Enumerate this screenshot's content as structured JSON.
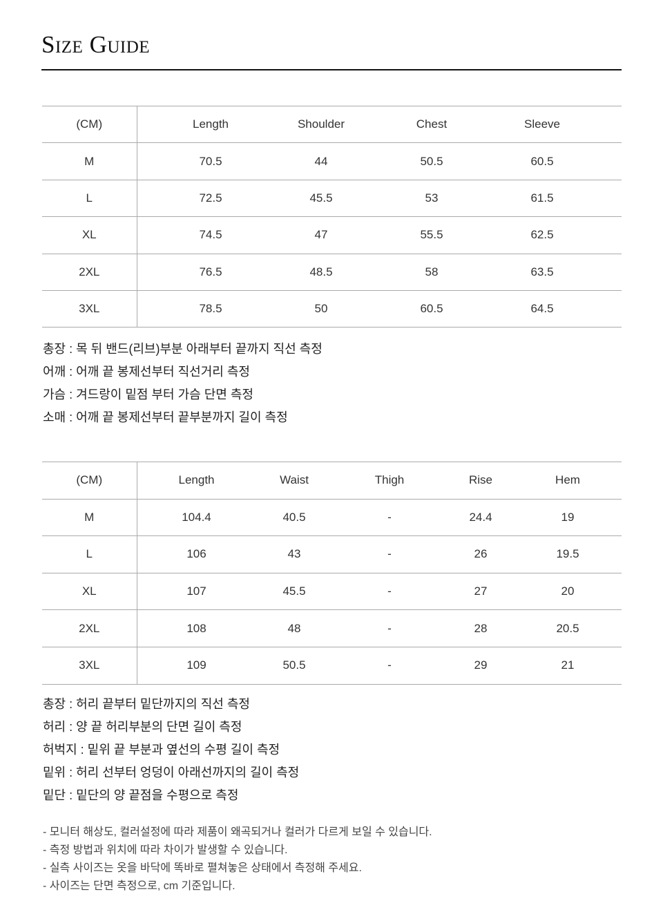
{
  "title": "Size Guide",
  "top_table": {
    "headers": [
      "(CM)",
      "Length",
      "Shoulder",
      "Chest",
      "Sleeve"
    ],
    "rows": [
      [
        "M",
        "70.5",
        "44",
        "50.5",
        "60.5"
      ],
      [
        "L",
        "72.5",
        "45.5",
        "53",
        "61.5"
      ],
      [
        "XL",
        "74.5",
        "47",
        "55.5",
        "62.5"
      ],
      [
        "2XL",
        "76.5",
        "48.5",
        "58",
        "63.5"
      ],
      [
        "3XL",
        "78.5",
        "50",
        "60.5",
        "64.5"
      ]
    ]
  },
  "top_notes": [
    "총장 : 목 뒤 밴드(리브)부분 아래부터 끝까지 직선 측정",
    "어깨 : 어깨 끝 봉제선부터 직선거리 측정",
    "가슴 : 겨드랑이 밑점 부터 가슴 단면 측정",
    "소매 : 어깨 끝 봉제선부터 끝부분까지 길이 측정"
  ],
  "bottom_table": {
    "headers": [
      "(CM)",
      "Length",
      "Waist",
      "Thigh",
      "Rise",
      "Hem"
    ],
    "rows": [
      [
        "M",
        "104.4",
        "40.5",
        "-",
        "24.4",
        "19"
      ],
      [
        "L",
        "106",
        "43",
        "-",
        "26",
        "19.5"
      ],
      [
        "XL",
        "107",
        "45.5",
        "-",
        "27",
        "20"
      ],
      [
        "2XL",
        "108",
        "48",
        "-",
        "28",
        "20.5"
      ],
      [
        "3XL",
        "109",
        "50.5",
        "-",
        "29",
        "21"
      ]
    ]
  },
  "bottom_notes": [
    "총장 : 허리 끝부터 밑단까지의 직선 측정",
    "허리 : 양 끝 허리부분의 단면 길이 측정",
    "허벅지 : 밑위 끝 부분과 옆선의 수평 길이 측정",
    "밑위 : 허리 선부터 엉덩이 아래선까지의 길이 측정",
    "밑단 : 밑단의 양 끝점을 수평으로 측정"
  ],
  "disclaimers": [
    "- 모니터 해상도, 컬러설정에 따라 제품이 왜곡되거나 컬러가 다르게 보일 수 있습니다.",
    "- 측정 방법과 위치에 따라 차이가 발생할 수 있습니다.",
    "- 실측 사이즈는 옷을 바닥에 똑바로 펼쳐놓은 상태에서 측정해 주세요.",
    "- 사이즈는 단면 측정으로, cm 기준입니다."
  ]
}
